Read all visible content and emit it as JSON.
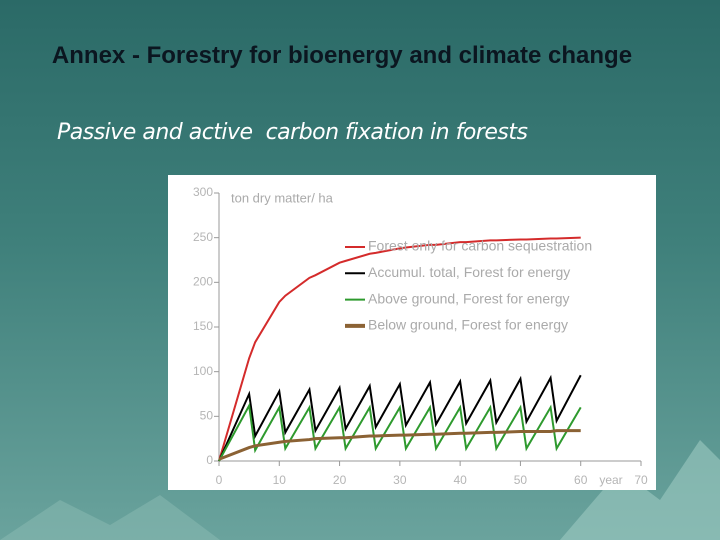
{
  "slide": {
    "title": "Annex - Forestry for bioenergy and climate change",
    "subtitle": "Passive and active  carbon fixation in forests"
  },
  "chart_data": {
    "type": "line",
    "ylabel": "ton dry matter/ ha",
    "xlabel": "year",
    "x": [
      0,
      5,
      6,
      10,
      11,
      15,
      16,
      20,
      21,
      25,
      26,
      30,
      31,
      35,
      36,
      40,
      41,
      45,
      46,
      50,
      51,
      55,
      56,
      60
    ],
    "series": [
      {
        "name": "Forest only for carbon sequestration",
        "color": "#d42b2b",
        "values": [
          0,
          115,
          133,
          178,
          185,
          205,
          208,
          222,
          224,
          232,
          233,
          238,
          239,
          242,
          242,
          245,
          245,
          247,
          247,
          248,
          248,
          249,
          249,
          250
        ]
      },
      {
        "name": "Accumul. total, Forest for energy",
        "color": "#000000",
        "values": [
          0,
          75,
          28,
          78,
          32,
          80,
          34,
          82,
          36,
          84,
          38,
          86,
          40,
          88,
          41,
          89,
          42,
          90,
          43,
          92,
          44,
          93,
          45,
          96
        ]
      },
      {
        "name": "Above ground, Forest for energy",
        "color": "#2e9a2e",
        "values": [
          0,
          62,
          12,
          60,
          14,
          60,
          14,
          60,
          14,
          60,
          14,
          60,
          14,
          60,
          14,
          60,
          14,
          60,
          14,
          60,
          14,
          60,
          14,
          60
        ]
      },
      {
        "name": "Below ground, Forest for energy",
        "color": "#8b6234",
        "values": [
          2,
          15,
          17,
          21,
          22,
          24,
          25,
          26,
          26,
          28,
          28,
          29,
          29,
          30,
          30,
          31,
          31,
          32,
          32,
          33,
          33,
          33,
          34,
          34
        ]
      }
    ],
    "xlim": [
      0,
      70
    ],
    "xticks": [
      0,
      10,
      20,
      30,
      40,
      50,
      60,
      70
    ],
    "ylim": [
      0,
      300
    ],
    "yticks": [
      0,
      50,
      100,
      150,
      200,
      250,
      300
    ]
  }
}
